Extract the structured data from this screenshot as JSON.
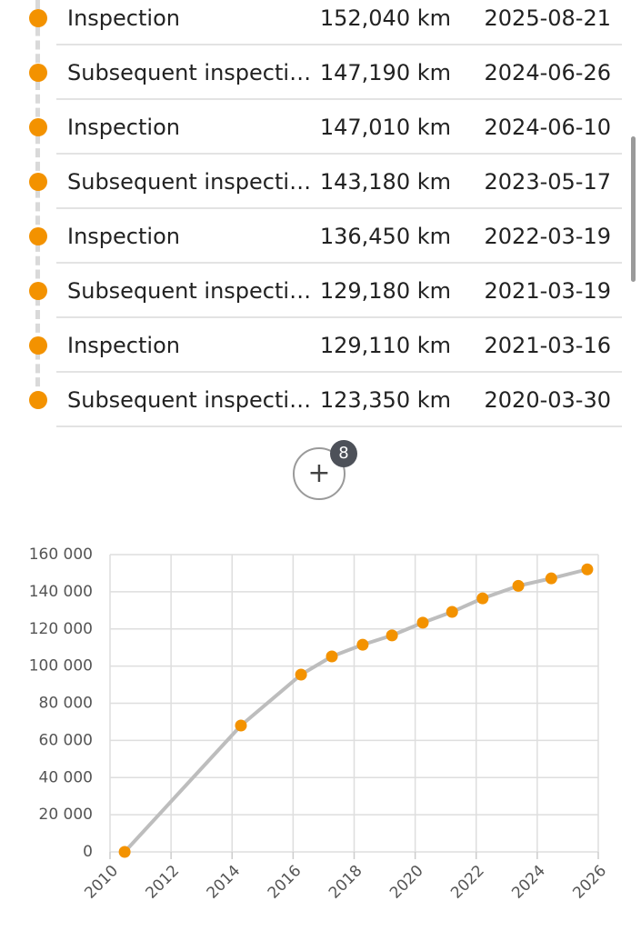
{
  "history": {
    "rows": [
      {
        "type": "Inspection",
        "mileage": "152,040 km",
        "date": "2025-08-21"
      },
      {
        "type": "Subsequent inspecti…",
        "mileage": "147,190 km",
        "date": "2024-06-26"
      },
      {
        "type": "Inspection",
        "mileage": "147,010 km",
        "date": "2024-06-10"
      },
      {
        "type": "Subsequent inspecti…",
        "mileage": "143,180 km",
        "date": "2023-05-17"
      },
      {
        "type": "Inspection",
        "mileage": "136,450 km",
        "date": "2022-03-19"
      },
      {
        "type": "Subsequent inspecti…",
        "mileage": "129,180 km",
        "date": "2021-03-19"
      },
      {
        "type": "Inspection",
        "mileage": "129,110 km",
        "date": "2021-03-16"
      },
      {
        "type": "Subsequent inspecti…",
        "mileage": "123,350 km",
        "date": "2020-03-30"
      }
    ],
    "more_count": "8"
  },
  "chart_data": {
    "type": "line",
    "x": [
      2010.48,
      2014.29,
      2016.26,
      2017.27,
      2018.28,
      2019.24,
      2020.25,
      2021.21,
      2022.21,
      2023.38,
      2024.46,
      2025.64
    ],
    "values": [
      0,
      68000,
      95400,
      105200,
      111500,
      116500,
      123350,
      129180,
      136450,
      143180,
      147190,
      152040
    ],
    "color": "#f39200",
    "line_color": "#bdbdbd",
    "xlim": [
      2010,
      2026
    ],
    "xticks": [
      2010,
      2012,
      2014,
      2016,
      2018,
      2020,
      2022,
      2024,
      2026
    ],
    "ylim": [
      0,
      160000
    ],
    "yticks": [
      0,
      {
        "value": 20000,
        "label": "20 000"
      },
      {
        "value": 40000,
        "label": "40 000"
      },
      {
        "value": 60000,
        "label": "60 000"
      },
      {
        "value": 80000,
        "label": "80 000"
      },
      {
        "value": 100000,
        "label": "100 000"
      },
      {
        "value": 120000,
        "label": "120 000"
      },
      {
        "value": 140000,
        "label": "140 000"
      },
      {
        "value": 160000,
        "label": "160 000"
      }
    ],
    "grid": true
  }
}
